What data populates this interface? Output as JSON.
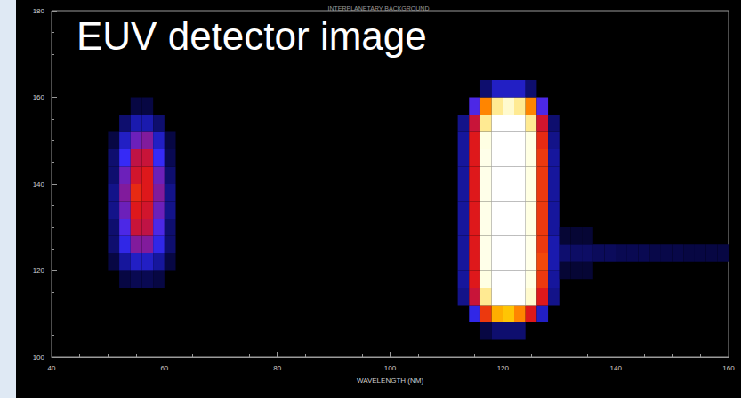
{
  "chart_data": {
    "type": "heatmap",
    "title": "INTERPLANETARY BACKGROUND",
    "annotation": "EUV detector image",
    "x_label": "WAVELENGTH (NM)",
    "xlim": [
      40,
      160
    ],
    "xticks": [
      40,
      60,
      80,
      100,
      120,
      140,
      160
    ],
    "ylim": [
      100,
      180
    ],
    "yticks": [
      100,
      120,
      140,
      160,
      180
    ],
    "grid": false,
    "cell_size": [
      2,
      4
    ],
    "color_range": [
      0,
      100
    ],
    "cells": [
      [
        53,
        118,
        10
      ],
      [
        55,
        118,
        12
      ],
      [
        57,
        118,
        12
      ],
      [
        59,
        118,
        10
      ],
      [
        51,
        122,
        10
      ],
      [
        53,
        122,
        20
      ],
      [
        55,
        122,
        25
      ],
      [
        57,
        122,
        25
      ],
      [
        59,
        122,
        20
      ],
      [
        61,
        122,
        10
      ],
      [
        51,
        126,
        15
      ],
      [
        53,
        126,
        30
      ],
      [
        55,
        126,
        40
      ],
      [
        57,
        126,
        40
      ],
      [
        59,
        126,
        30
      ],
      [
        61,
        126,
        15
      ],
      [
        51,
        130,
        15
      ],
      [
        53,
        130,
        35
      ],
      [
        55,
        130,
        50
      ],
      [
        57,
        130,
        48
      ],
      [
        59,
        130,
        35
      ],
      [
        61,
        130,
        15
      ],
      [
        51,
        134,
        18
      ],
      [
        53,
        134,
        38
      ],
      [
        55,
        134,
        55
      ],
      [
        57,
        134,
        52
      ],
      [
        59,
        134,
        38
      ],
      [
        61,
        134,
        18
      ],
      [
        51,
        138,
        18
      ],
      [
        53,
        138,
        40
      ],
      [
        55,
        138,
        58
      ],
      [
        57,
        138,
        55
      ],
      [
        59,
        138,
        40
      ],
      [
        61,
        138,
        18
      ],
      [
        51,
        142,
        15
      ],
      [
        53,
        142,
        38
      ],
      [
        55,
        142,
        52
      ],
      [
        57,
        142,
        55
      ],
      [
        59,
        142,
        38
      ],
      [
        61,
        142,
        15
      ],
      [
        51,
        146,
        15
      ],
      [
        53,
        146,
        32
      ],
      [
        55,
        146,
        48
      ],
      [
        57,
        146,
        50
      ],
      [
        59,
        146,
        32
      ],
      [
        61,
        146,
        12
      ],
      [
        51,
        150,
        10
      ],
      [
        53,
        150,
        25
      ],
      [
        55,
        150,
        38
      ],
      [
        57,
        150,
        40
      ],
      [
        59,
        150,
        25
      ],
      [
        61,
        150,
        10
      ],
      [
        53,
        154,
        15
      ],
      [
        55,
        154,
        22
      ],
      [
        57,
        154,
        22
      ],
      [
        59,
        154,
        15
      ],
      [
        55,
        158,
        10
      ],
      [
        57,
        158,
        10
      ],
      [
        117,
        106,
        10
      ],
      [
        119,
        106,
        15
      ],
      [
        121,
        106,
        15
      ],
      [
        123,
        106,
        15
      ],
      [
        115,
        110,
        30
      ],
      [
        117,
        110,
        60
      ],
      [
        119,
        110,
        75
      ],
      [
        121,
        110,
        78
      ],
      [
        123,
        110,
        70
      ],
      [
        125,
        110,
        55
      ],
      [
        127,
        110,
        25
      ],
      [
        113,
        114,
        18
      ],
      [
        115,
        114,
        50
      ],
      [
        117,
        114,
        85
      ],
      [
        119,
        114,
        100
      ],
      [
        121,
        114,
        100
      ],
      [
        123,
        114,
        100
      ],
      [
        125,
        114,
        88
      ],
      [
        127,
        114,
        55
      ],
      [
        129,
        114,
        18
      ],
      [
        113,
        118,
        20
      ],
      [
        115,
        118,
        55
      ],
      [
        117,
        118,
        90
      ],
      [
        119,
        118,
        100
      ],
      [
        121,
        118,
        100
      ],
      [
        123,
        118,
        100
      ],
      [
        125,
        118,
        90
      ],
      [
        127,
        118,
        60
      ],
      [
        129,
        118,
        20
      ],
      [
        113,
        122,
        20
      ],
      [
        115,
        122,
        55
      ],
      [
        117,
        122,
        92
      ],
      [
        119,
        122,
        100
      ],
      [
        121,
        122,
        100
      ],
      [
        123,
        122,
        100
      ],
      [
        125,
        122,
        92
      ],
      [
        127,
        122,
        62
      ],
      [
        129,
        122,
        22
      ],
      [
        113,
        126,
        20
      ],
      [
        115,
        126,
        55
      ],
      [
        117,
        126,
        92
      ],
      [
        119,
        126,
        100
      ],
      [
        121,
        126,
        100
      ],
      [
        123,
        126,
        100
      ],
      [
        125,
        126,
        92
      ],
      [
        127,
        126,
        60
      ],
      [
        129,
        126,
        22
      ],
      [
        113,
        130,
        20
      ],
      [
        115,
        130,
        55
      ],
      [
        117,
        130,
        92
      ],
      [
        119,
        130,
        100
      ],
      [
        121,
        130,
        100
      ],
      [
        123,
        130,
        100
      ],
      [
        125,
        130,
        90
      ],
      [
        127,
        130,
        60
      ],
      [
        129,
        130,
        20
      ],
      [
        113,
        134,
        20
      ],
      [
        115,
        134,
        55
      ],
      [
        117,
        134,
        92
      ],
      [
        119,
        134,
        100
      ],
      [
        121,
        134,
        100
      ],
      [
        123,
        134,
        100
      ],
      [
        125,
        134,
        90
      ],
      [
        127,
        134,
        60
      ],
      [
        129,
        134,
        20
      ],
      [
        113,
        138,
        20
      ],
      [
        115,
        138,
        55
      ],
      [
        117,
        138,
        92
      ],
      [
        119,
        138,
        100
      ],
      [
        121,
        138,
        100
      ],
      [
        123,
        138,
        100
      ],
      [
        125,
        138,
        90
      ],
      [
        127,
        138,
        60
      ],
      [
        129,
        138,
        20
      ],
      [
        113,
        142,
        20
      ],
      [
        115,
        142,
        55
      ],
      [
        117,
        142,
        92
      ],
      [
        119,
        142,
        100
      ],
      [
        121,
        142,
        100
      ],
      [
        123,
        142,
        100
      ],
      [
        125,
        142,
        90
      ],
      [
        127,
        142,
        60
      ],
      [
        129,
        142,
        20
      ],
      [
        113,
        146,
        20
      ],
      [
        115,
        146,
        55
      ],
      [
        117,
        146,
        92
      ],
      [
        119,
        146,
        100
      ],
      [
        121,
        146,
        100
      ],
      [
        123,
        146,
        100
      ],
      [
        125,
        146,
        90
      ],
      [
        127,
        146,
        60
      ],
      [
        129,
        146,
        20
      ],
      [
        113,
        150,
        20
      ],
      [
        115,
        150,
        55
      ],
      [
        117,
        150,
        90
      ],
      [
        119,
        150,
        100
      ],
      [
        121,
        150,
        100
      ],
      [
        123,
        150,
        100
      ],
      [
        125,
        150,
        90
      ],
      [
        127,
        150,
        58
      ],
      [
        129,
        150,
        18
      ],
      [
        113,
        154,
        18
      ],
      [
        115,
        154,
        50
      ],
      [
        117,
        154,
        85
      ],
      [
        119,
        154,
        100
      ],
      [
        121,
        154,
        100
      ],
      [
        123,
        154,
        100
      ],
      [
        125,
        154,
        85
      ],
      [
        127,
        154,
        52
      ],
      [
        129,
        154,
        15
      ],
      [
        115,
        158,
        35
      ],
      [
        117,
        158,
        70
      ],
      [
        119,
        158,
        85
      ],
      [
        121,
        158,
        88
      ],
      [
        123,
        158,
        85
      ],
      [
        125,
        158,
        70
      ],
      [
        127,
        158,
        35
      ],
      [
        117,
        162,
        15
      ],
      [
        119,
        162,
        25
      ],
      [
        121,
        162,
        25
      ],
      [
        123,
        162,
        25
      ],
      [
        125,
        162,
        15
      ],
      [
        131,
        120,
        8
      ],
      [
        133,
        120,
        8
      ],
      [
        135,
        120,
        8
      ],
      [
        131,
        124,
        15
      ],
      [
        133,
        124,
        14
      ],
      [
        135,
        124,
        14
      ],
      [
        137,
        124,
        13
      ],
      [
        139,
        124,
        13
      ],
      [
        141,
        124,
        12
      ],
      [
        143,
        124,
        12
      ],
      [
        145,
        124,
        12
      ],
      [
        147,
        124,
        11
      ],
      [
        149,
        124,
        11
      ],
      [
        151,
        124,
        11
      ],
      [
        153,
        124,
        10
      ],
      [
        155,
        124,
        10
      ],
      [
        157,
        124,
        10
      ],
      [
        159,
        124,
        10
      ],
      [
        131,
        128,
        8
      ],
      [
        133,
        128,
        8
      ],
      [
        135,
        128,
        8
      ]
    ]
  }
}
